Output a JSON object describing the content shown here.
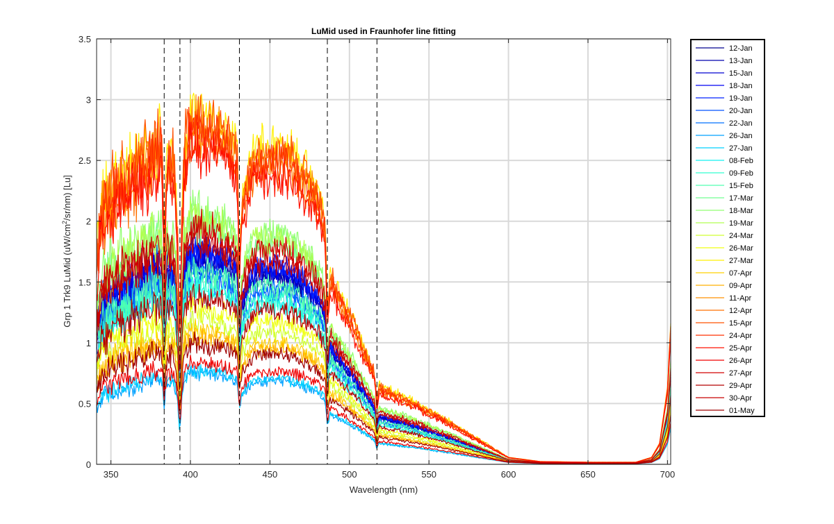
{
  "chart_data": {
    "type": "line",
    "title": "LuMid used in Fraunhofer line fitting",
    "xlabel": "Wavelength (nm)",
    "ylabel_main": "Grp 1 Trk9 LuMid (uW/cm",
    "ylabel_sup": "2",
    "ylabel_tail": "/sr/nm) [Lu]",
    "xlim": [
      341,
      702
    ],
    "ylim": [
      0,
      3.5
    ],
    "xticks": [
      350,
      400,
      450,
      500,
      550,
      600,
      650,
      700
    ],
    "yticks": [
      0,
      0.5,
      1,
      1.5,
      2,
      2.5,
      3,
      3.5
    ],
    "xtick_labels": [
      "350",
      "400",
      "450",
      "500",
      "550",
      "600",
      "650",
      "700"
    ],
    "ytick_labels": [
      "0",
      "0.5",
      "1",
      "1.5",
      "2",
      "2.5",
      "3",
      "3.5"
    ],
    "grid": true,
    "fraunhofer_lines_nm": [
      383.5,
      393.4,
      430.8,
      486.1,
      517.3
    ],
    "envelope_shape": {
      "x": [
        341,
        345,
        350,
        360,
        370,
        380,
        390,
        393,
        396,
        400,
        410,
        420,
        430,
        432,
        440,
        450,
        460,
        470,
        480,
        485,
        487,
        495,
        505,
        515,
        520,
        540,
        560,
        580,
        600,
        620,
        650,
        680,
        690,
        695,
        700,
        702
      ],
      "y": [
        0.6,
        0.75,
        0.78,
        0.83,
        0.88,
        0.92,
        0.88,
        0.55,
        0.9,
        1.0,
        0.98,
        0.96,
        0.9,
        0.75,
        0.9,
        0.9,
        0.9,
        0.85,
        0.78,
        0.7,
        0.55,
        0.48,
        0.38,
        0.27,
        0.22,
        0.18,
        0.13,
        0.075,
        0.02,
        0.008,
        0.006,
        0.006,
        0.02,
        0.06,
        0.22,
        0.4
      ]
    },
    "series": [
      {
        "name": "12-Jan",
        "color": "#00008f",
        "peak": 1.7
      },
      {
        "name": "13-Jan",
        "color": "#0000ae",
        "peak": 1.72
      },
      {
        "name": "15-Jan",
        "color": "#0000d0",
        "peak": 1.75
      },
      {
        "name": "18-Jan",
        "color": "#0000f2",
        "peak": 1.78
      },
      {
        "name": "19-Jan",
        "color": "#0020ff",
        "peak": 1.8
      },
      {
        "name": "20-Jan",
        "color": "#0050ff",
        "peak": 1.55
      },
      {
        "name": "22-Jan",
        "color": "#0070ff",
        "peak": 1.6
      },
      {
        "name": "26-Jan",
        "color": "#00a0ff",
        "peak": 0.76
      },
      {
        "name": "27-Jan",
        "color": "#00d0ff",
        "peak": 0.78
      },
      {
        "name": "08-Feb",
        "color": "#10f0f0",
        "peak": 1.45
      },
      {
        "name": "09-Feb",
        "color": "#30ffd0",
        "peak": 1.5
      },
      {
        "name": "15-Feb",
        "color": "#50ffb0",
        "peak": 1.62
      },
      {
        "name": "17-Mar",
        "color": "#70ff90",
        "peak": 2.0
      },
      {
        "name": "18-Mar",
        "color": "#90ff70",
        "peak": 2.1
      },
      {
        "name": "19-Mar",
        "color": "#b0ff50",
        "peak": 2.05
      },
      {
        "name": "24-Mar",
        "color": "#d0ff30",
        "peak": 1.2
      },
      {
        "name": "26-Mar",
        "color": "#f0ff10",
        "peak": 1.3
      },
      {
        "name": "27-Mar",
        "color": "#fff000",
        "peak": 2.9
      },
      {
        "name": "07-Apr",
        "color": "#ffd000",
        "peak": 1.1
      },
      {
        "name": "09-Apr",
        "color": "#ffb000",
        "peak": 1.05
      },
      {
        "name": "11-Apr",
        "color": "#ff9000",
        "peak": 2.8
      },
      {
        "name": "12-Apr",
        "color": "#ff7000",
        "peak": 2.7
      },
      {
        "name": "15-Apr",
        "color": "#ff5000",
        "peak": 2.85
      },
      {
        "name": "24-Apr",
        "color": "#ff3000",
        "peak": 2.75
      },
      {
        "name": "25-Apr",
        "color": "#ff1000",
        "peak": 2.6
      },
      {
        "name": "26-Apr",
        "color": "#f00000",
        "peak": 0.85
      },
      {
        "name": "27-Apr",
        "color": "#d20000",
        "peak": 1.95
      },
      {
        "name": "29-Apr",
        "color": "#b40000",
        "peak": 1.4
      },
      {
        "name": "30-Apr",
        "color": "#c80000",
        "peak": 1.85
      },
      {
        "name": "01-May",
        "color": "#a00000",
        "peak": 1.0
      }
    ]
  }
}
